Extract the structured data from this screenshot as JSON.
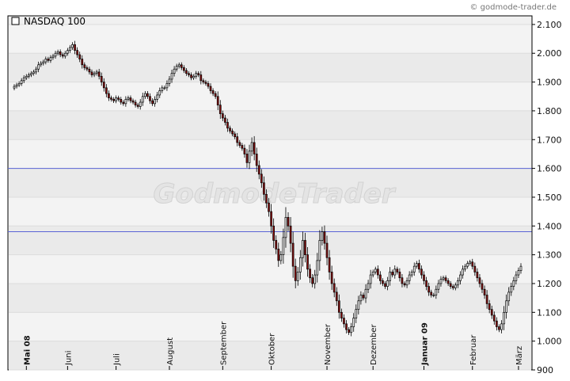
{
  "credit": "© godmode-trader.de",
  "watermark": "GodmodeTrader",
  "chart_data": {
    "type": "candlestick",
    "series_name": "NASDAQ 100",
    "y_ticks": [
      900,
      1000,
      1100,
      1200,
      1300,
      1400,
      1500,
      1600,
      1700,
      1800,
      1900,
      2000,
      2100
    ],
    "y_tick_labels": [
      "900",
      "1.000",
      "1.100",
      "1.200",
      "1.300",
      "1.400",
      "1.500",
      "1.600",
      "1.700",
      "1.800",
      "1.900",
      "2.000",
      "2.100"
    ],
    "ylim": [
      900,
      2130
    ],
    "horizontal_lines": [
      1600,
      1380
    ],
    "months": [
      {
        "label": "Mai 08",
        "bold": true,
        "index": 5
      },
      {
        "label": "Juni",
        "bold": false,
        "index": 22
      },
      {
        "label": "Juli",
        "bold": false,
        "index": 42
      },
      {
        "label": "August",
        "bold": false,
        "index": 64
      },
      {
        "label": "September",
        "bold": false,
        "index": 86
      },
      {
        "label": "Oktober",
        "bold": false,
        "index": 106
      },
      {
        "label": "November",
        "bold": false,
        "index": 129
      },
      {
        "label": "Dezember",
        "bold": false,
        "index": 148
      },
      {
        "label": "Januar 09",
        "bold": true,
        "index": 169
      },
      {
        "label": "Februar",
        "bold": false,
        "index": 189
      },
      {
        "label": "März",
        "bold": false,
        "index": 208
      }
    ],
    "close": [
      1885,
      1890,
      1895,
      1905,
      1915,
      1920,
      1925,
      1930,
      1935,
      1945,
      1960,
      1965,
      1970,
      1980,
      1975,
      1985,
      1990,
      2000,
      2005,
      1995,
      1990,
      2000,
      2010,
      2020,
      2030,
      2010,
      1995,
      1980,
      1960,
      1950,
      1945,
      1935,
      1925,
      1930,
      1935,
      1920,
      1900,
      1880,
      1860,
      1845,
      1840,
      1835,
      1845,
      1840,
      1830,
      1825,
      1840,
      1845,
      1835,
      1830,
      1820,
      1815,
      1830,
      1850,
      1860,
      1850,
      1835,
      1825,
      1840,
      1855,
      1870,
      1880,
      1880,
      1895,
      1910,
      1930,
      1945,
      1955,
      1960,
      1950,
      1940,
      1930,
      1925,
      1915,
      1920,
      1930,
      1925,
      1905,
      1900,
      1895,
      1885,
      1870,
      1860,
      1850,
      1820,
      1790,
      1775,
      1760,
      1740,
      1730,
      1720,
      1710,
      1690,
      1680,
      1670,
      1650,
      1620,
      1660,
      1690,
      1650,
      1610,
      1580,
      1550,
      1510,
      1480,
      1450,
      1400,
      1350,
      1320,
      1280,
      1300,
      1360,
      1430,
      1400,
      1340,
      1260,
      1210,
      1240,
      1290,
      1350,
      1300,
      1250,
      1220,
      1200,
      1230,
      1280,
      1350,
      1380,
      1340,
      1290,
      1240,
      1200,
      1170,
      1140,
      1100,
      1080,
      1060,
      1040,
      1030,
      1050,
      1080,
      1110,
      1140,
      1160,
      1150,
      1180,
      1200,
      1230,
      1240,
      1250,
      1230,
      1210,
      1200,
      1190,
      1210,
      1240,
      1230,
      1250,
      1240,
      1220,
      1200,
      1195,
      1210,
      1230,
      1240,
      1260,
      1270,
      1250,
      1230,
      1210,
      1190,
      1170,
      1160,
      1160,
      1180,
      1200,
      1215,
      1220,
      1210,
      1200,
      1190,
      1185,
      1195,
      1210,
      1230,
      1250,
      1260,
      1270,
      1275,
      1260,
      1240,
      1220,
      1200,
      1180,
      1160,
      1130,
      1110,
      1090,
      1070,
      1050,
      1040,
      1060,
      1100,
      1140,
      1170,
      1190,
      1210,
      1230,
      1245,
      1260
    ]
  }
}
